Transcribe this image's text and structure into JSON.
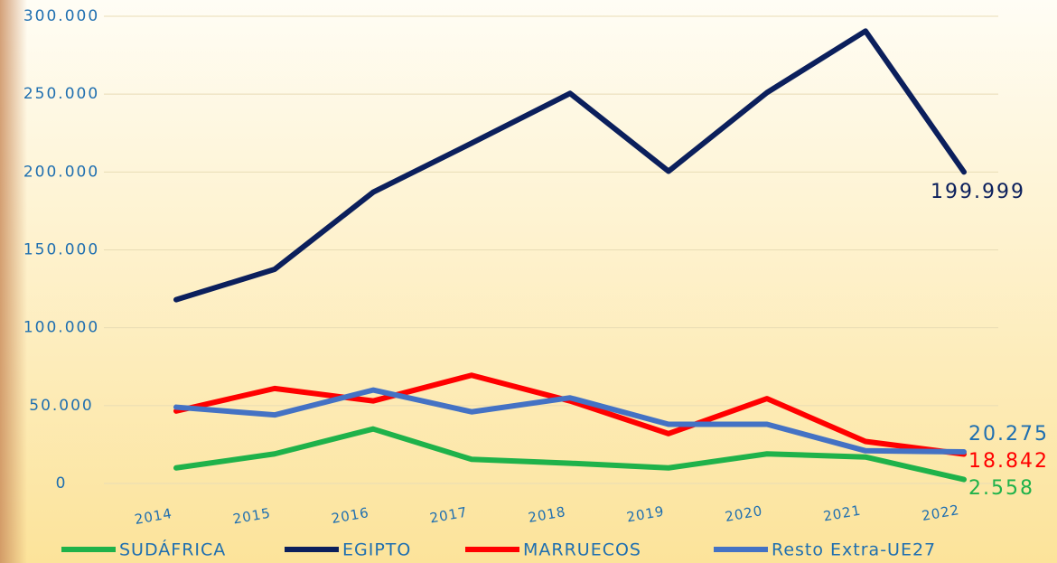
{
  "chart_data": {
    "type": "line",
    "categories": [
      "2014",
      "2015",
      "2016",
      "2017",
      "2018",
      "2019",
      "2020",
      "2021",
      "2022"
    ],
    "series": [
      {
        "name": "SUDÁFRICA",
        "color": "#1fb24a",
        "values": [
          10000,
          19000,
          35000,
          15500,
          13000,
          10000,
          19000,
          17000,
          2558
        ],
        "value_labels": [
          null,
          null,
          null,
          null,
          null,
          null,
          null,
          null,
          "2.558"
        ]
      },
      {
        "name": "EGIPTO",
        "color": "#0b1f5c",
        "values": [
          118000,
          137500,
          187000,
          218500,
          250500,
          200500,
          251000,
          290500,
          199999
        ],
        "value_labels": [
          null,
          null,
          null,
          null,
          null,
          null,
          null,
          null,
          "199.999"
        ]
      },
      {
        "name": "MARRUECOS",
        "color": "#ff0000",
        "values": [
          46500,
          61000,
          53000,
          69500,
          53000,
          32000,
          54500,
          27000,
          18842
        ],
        "value_labels": [
          null,
          null,
          null,
          null,
          null,
          null,
          null,
          null,
          "18.842"
        ]
      },
      {
        "name": "Resto Extra-UE27",
        "color": "#4472c4",
        "values": [
          49000,
          44000,
          60000,
          46000,
          55000,
          38000,
          38000,
          21000,
          20275
        ],
        "value_labels": [
          null,
          null,
          null,
          null,
          null,
          null,
          null,
          null,
          "20.275"
        ]
      }
    ],
    "ylim": [
      0,
      300000
    ],
    "yticks": [
      0,
      {
        "value": 50000,
        "label": "50.000"
      },
      {
        "value": 100000,
        "label": "100.000"
      },
      {
        "value": 150000,
        "label": "150.000"
      },
      {
        "value": 200000,
        "label": "200.000"
      },
      {
        "value": 250000,
        "label": "250.000"
      },
      {
        "value": 300000,
        "label": "300.000"
      }
    ],
    "grid": true,
    "legend": "bottom"
  }
}
